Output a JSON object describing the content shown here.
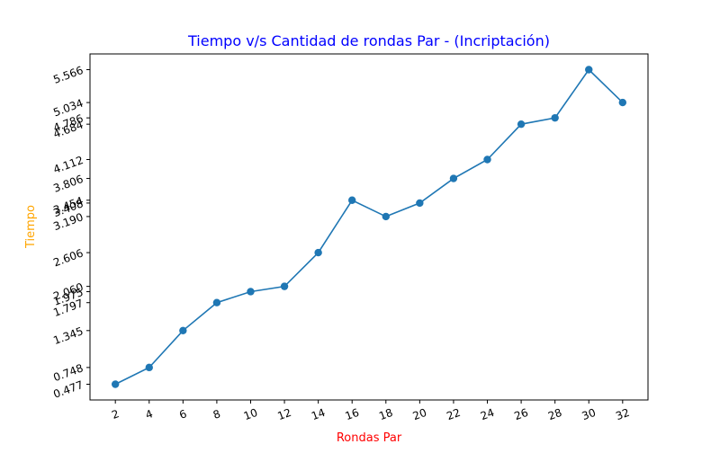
{
  "chart_data": {
    "type": "line",
    "title": "Tiempo v/s Cantidad de rondas Par - (Incriptación)",
    "xlabel": "Rondas Par",
    "ylabel": "Tiempo",
    "x": [
      2,
      4,
      6,
      8,
      10,
      12,
      14,
      16,
      18,
      20,
      22,
      24,
      26,
      28,
      30,
      32
    ],
    "y": [
      0.477,
      0.748,
      1.345,
      1.797,
      1.975,
      2.06,
      2.606,
      3.454,
      3.19,
      3.408,
      3.806,
      4.112,
      4.684,
      4.786,
      5.566,
      5.034
    ],
    "xticks": [
      "2",
      "4",
      "6",
      "8",
      "10",
      "12",
      "14",
      "16",
      "18",
      "20",
      "22",
      "24",
      "26",
      "28",
      "30",
      "32"
    ],
    "yticks": [
      "0.477",
      "0.748",
      "1.345",
      "1.797",
      "1.975",
      "2.060",
      "2.606",
      "3.190",
      "3.408",
      "3.454",
      "3.806",
      "4.112",
      "4.684",
      "4.786",
      "5.034",
      "5.566"
    ],
    "xlim": [
      0.5,
      33.5
    ],
    "ylim": [
      0.2225,
      5.8205
    ],
    "grid": false,
    "legend": "none",
    "colors": {
      "line": "#1f77b4",
      "title": "#0000ff",
      "xlabel": "#ff0000",
      "ylabel": "#ffa500",
      "axis": "#000000"
    }
  }
}
